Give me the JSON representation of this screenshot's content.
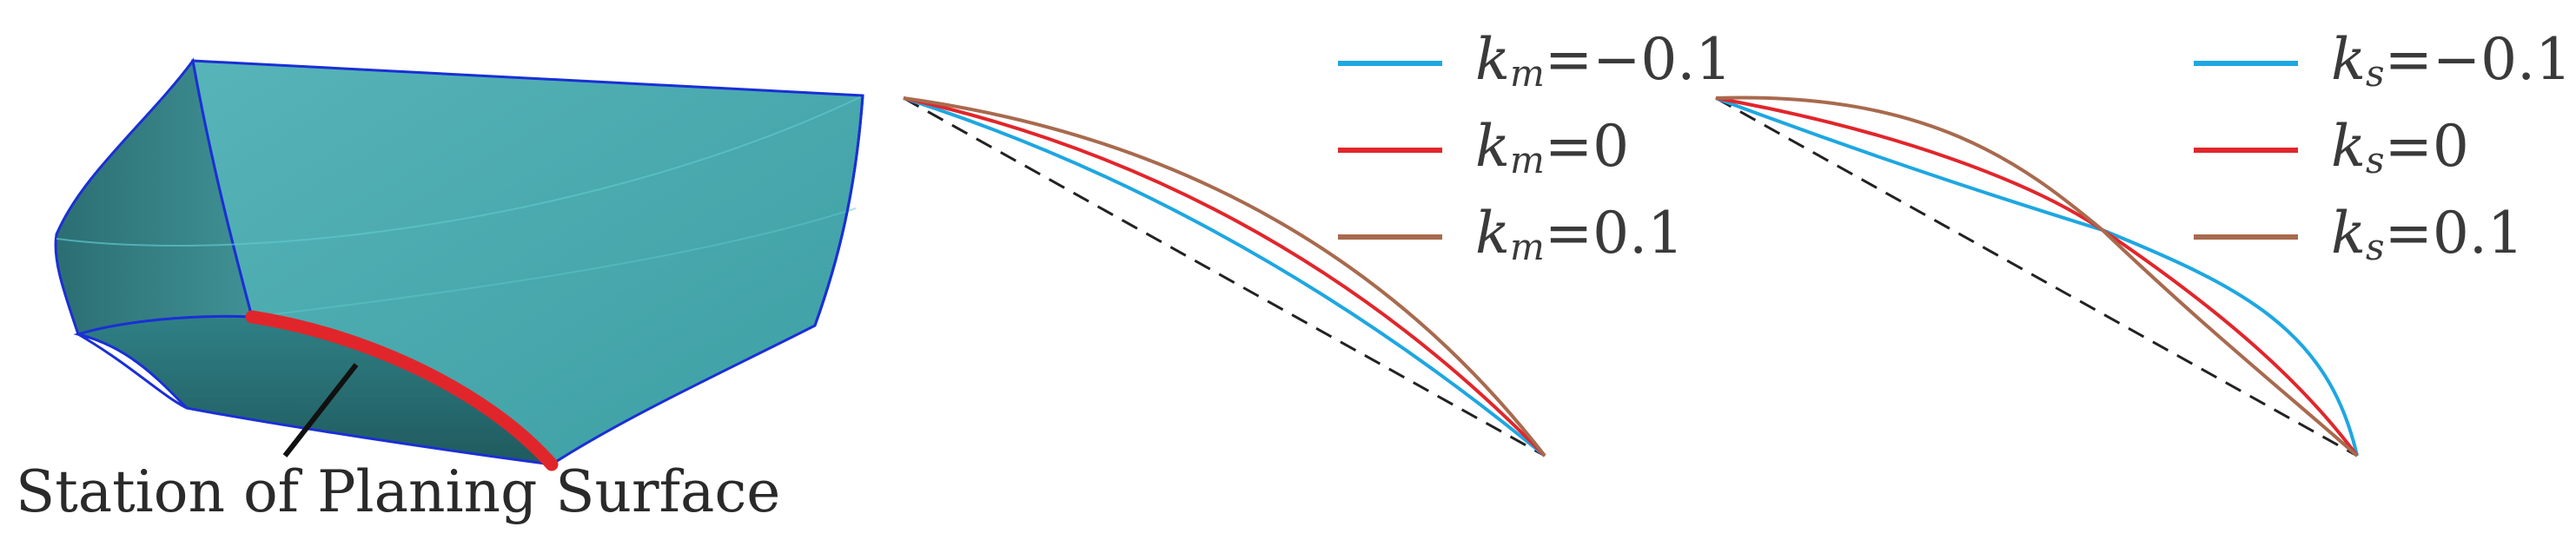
{
  "hull": {
    "caption": "Station of Planing Surface",
    "colors": {
      "surface": "#4aa9ae",
      "dark": "#2a6d71",
      "edge": "#1a2fd6",
      "station": "#e1262b"
    }
  },
  "panels": [
    {
      "legend": [
        {
          "symbol": "k",
          "subscript": "m",
          "value": "=−0.1",
          "color": "#1ea7e1"
        },
        {
          "symbol": "k",
          "subscript": "m",
          "value": "=0",
          "color": "#e1262b"
        },
        {
          "symbol": "k",
          "subscript": "m",
          "value": "=0.1",
          "color": "#a86a4e"
        }
      ]
    },
    {
      "legend": [
        {
          "symbol": "k",
          "subscript": "s",
          "value": "=−0.1",
          "color": "#1ea7e1"
        },
        {
          "symbol": "k",
          "subscript": "s",
          "value": "=0",
          "color": "#e1262b"
        },
        {
          "symbol": "k",
          "subscript": "s",
          "value": "=0.1",
          "color": "#a86a4e"
        }
      ]
    }
  ]
}
